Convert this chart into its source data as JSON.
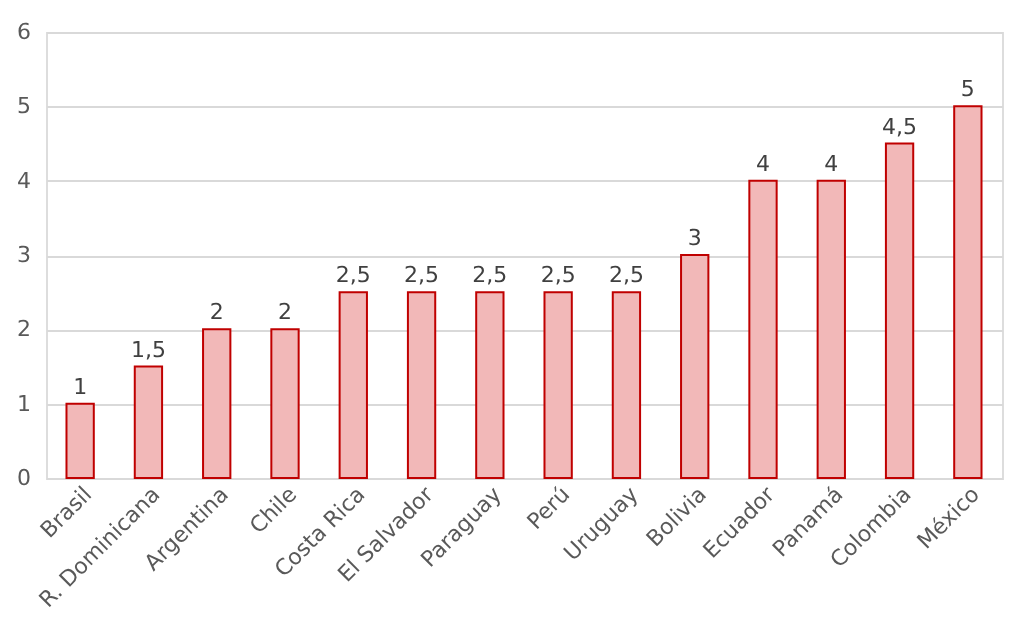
{
  "chart_data": {
    "type": "bar",
    "categories": [
      "Brasil",
      "R. Dominicana",
      "Argentina",
      "Chile",
      "Costa Rica",
      "El Salvador",
      "Paraguay",
      "Perú",
      "Uruguay",
      "Bolivia",
      "Ecuador",
      "Panamá",
      "Colombia",
      "México"
    ],
    "values": [
      1,
      1.5,
      2,
      2,
      2.5,
      2.5,
      2.5,
      2.5,
      2.5,
      3,
      4,
      4,
      4.5,
      5
    ],
    "value_labels": [
      "1",
      "1,5",
      "2",
      "2",
      "2,5",
      "2,5",
      "2,5",
      "2,5",
      "2,5",
      "3",
      "4",
      "4",
      "4,5",
      "5"
    ],
    "color": "#f2b8b8",
    "ylim": [
      0,
      6
    ],
    "yticks": [
      0,
      1,
      2,
      3,
      4,
      5,
      6
    ],
    "grid": "y"
  }
}
